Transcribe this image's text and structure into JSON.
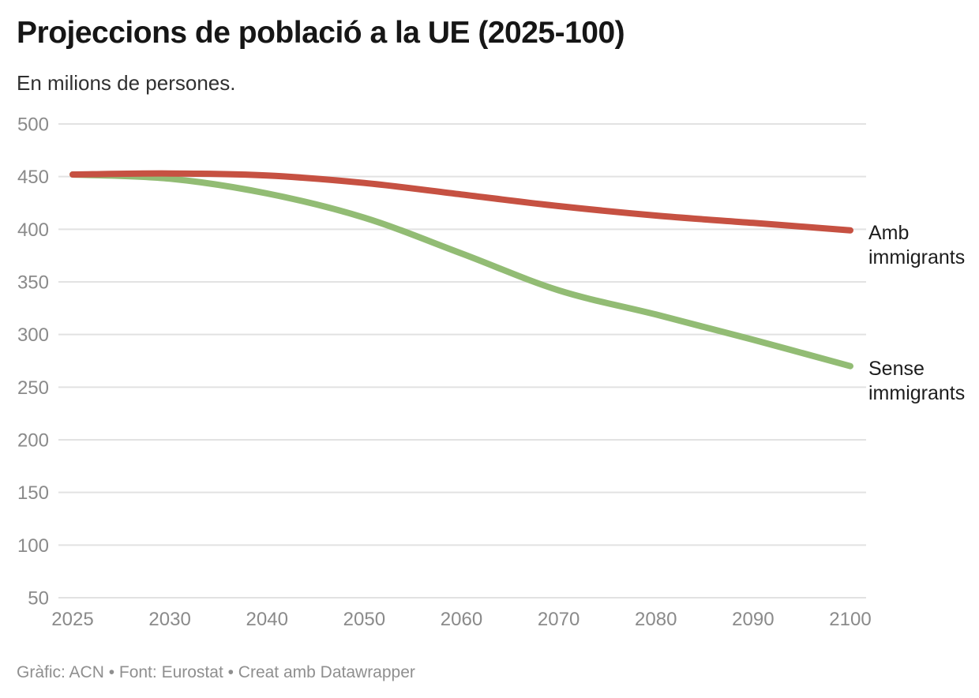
{
  "header": {
    "title": "Projeccions de població a la UE (2025-100)",
    "subtitle": "En milions de persones."
  },
  "chart_data": {
    "type": "line",
    "title": "Projeccions de població a la UE (2025-100)",
    "subtitle": "En milions de persones.",
    "categories": [
      "2025",
      "2030",
      "2040",
      "2050",
      "2060",
      "2070",
      "2080",
      "2090",
      "2100"
    ],
    "series": [
      {
        "name": "Amb immigrants",
        "color": "#c65142",
        "values": [
          452,
          453,
          451,
          444,
          433,
          422,
          413,
          406,
          399
        ]
      },
      {
        "name": "Sense immigrants",
        "color": "#92bc74",
        "values": [
          452,
          448,
          434,
          411,
          377,
          342,
          319,
          295,
          270
        ]
      }
    ],
    "ylim": [
      50,
      500
    ],
    "yticks": [
      500,
      450,
      400,
      350,
      300,
      250,
      200,
      150,
      100,
      50
    ],
    "xlabel": "",
    "ylabel": "",
    "grid": "horizontal",
    "legend_position": "right-of-line-end",
    "line_width": 8
  },
  "colors": {
    "amb_line": "#c65142",
    "sense_line": "#92bc74",
    "gridline": "#e2e2e2",
    "axis_text": "#8a8a8a",
    "title_text": "#161616",
    "subtitle_text": "#303030",
    "series_label_text": "#1d1d1d",
    "footer_text": "#8f8f8f",
    "background": "#ffffff"
  },
  "footer": {
    "text": "Gràfic: ACN • Font: Eurostat • Creat amb Datawrapper"
  }
}
